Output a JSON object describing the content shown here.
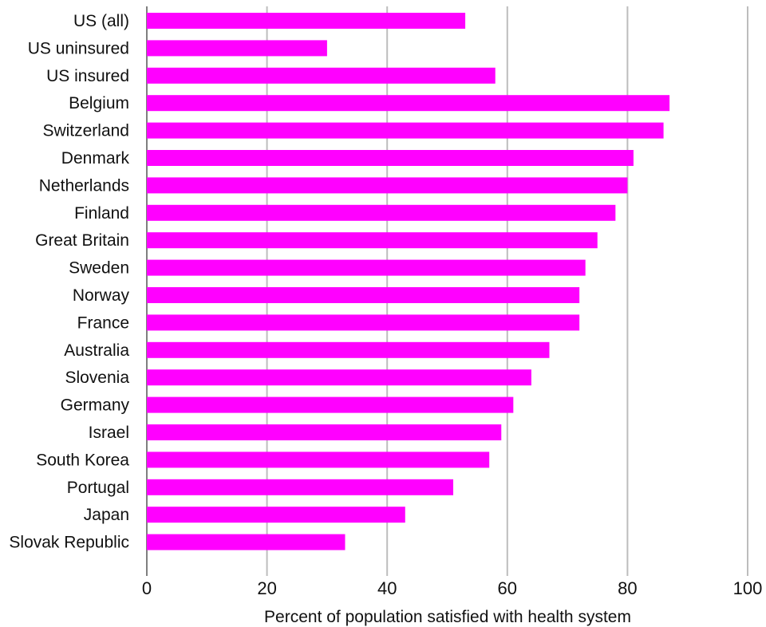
{
  "chart_data": {
    "type": "bar",
    "orientation": "horizontal",
    "title": "",
    "xlabel": "Percent of population satisfied with health system",
    "ylabel": "",
    "xlim": [
      0,
      100
    ],
    "xticks": [
      0,
      20,
      40,
      60,
      80,
      100
    ],
    "grid": true,
    "bar_color": "#ff00ff",
    "grid_color": "#bdbdbd",
    "categories": [
      "US (all)",
      "US uninsured",
      "US insured",
      "Belgium",
      "Switzerland",
      "Denmark",
      "Netherlands",
      "Finland",
      "Great Britain",
      "Sweden",
      "Norway",
      "France",
      "Australia",
      "Slovenia",
      "Germany",
      "Israel",
      "South Korea",
      "Portugal",
      "Japan",
      "Slovak Republic"
    ],
    "values": [
      53,
      30,
      58,
      87,
      86,
      81,
      80,
      78,
      75,
      73,
      72,
      72,
      67,
      64,
      61,
      59,
      57,
      51,
      43,
      33
    ]
  }
}
